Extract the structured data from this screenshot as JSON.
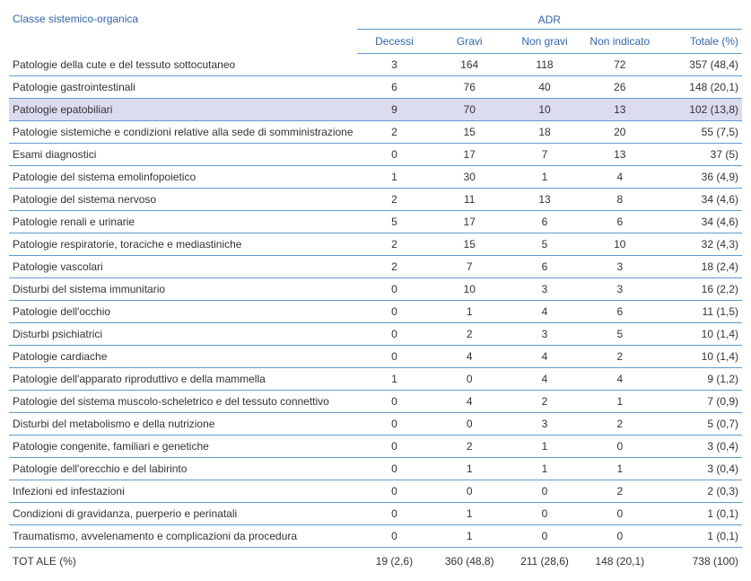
{
  "headers": {
    "class_label": "Classe sistemico-organica",
    "adr_label": "ADR",
    "columns": [
      "Decessi",
      "Gravi",
      "Non gravi",
      "Non indicato",
      "Totale (%)"
    ]
  },
  "rows": [
    {
      "label": "Patologie della cute e del tessuto sottocutaneo",
      "vals": [
        "3",
        "164",
        "118",
        "72"
      ],
      "total": "357 (48,4)",
      "highlight": false
    },
    {
      "label": "Patologie gastrointestinali",
      "vals": [
        "6",
        "76",
        "40",
        "26"
      ],
      "total": "148 (20,1)",
      "highlight": false
    },
    {
      "label": "Patologie epatobiliari",
      "vals": [
        "9",
        "70",
        "10",
        "13"
      ],
      "total": "102 (13,8)",
      "highlight": true
    },
    {
      "label": "Patologie sistemiche e condizioni relative alla sede di somministrazione",
      "vals": [
        "2",
        "15",
        "18",
        "20"
      ],
      "total": "55 (7,5)",
      "highlight": false
    },
    {
      "label": "Esami diagnostici",
      "vals": [
        "0",
        "17",
        "7",
        "13"
      ],
      "total": "37 (5)",
      "highlight": false
    },
    {
      "label": "Patologie del sistema emolinfopoietico",
      "vals": [
        "1",
        "30",
        "1",
        "4"
      ],
      "total": "36 (4,9)",
      "highlight": false
    },
    {
      "label": "Patologie del sistema nervoso",
      "vals": [
        "2",
        "11",
        "13",
        "8"
      ],
      "total": "34 (4,6)",
      "highlight": false
    },
    {
      "label": "Patologie renali e urinarie",
      "vals": [
        "5",
        "17",
        "6",
        "6"
      ],
      "total": "34 (4,6)",
      "highlight": false
    },
    {
      "label": "Patologie respiratorie, toraciche e mediastiniche",
      "vals": [
        "2",
        "15",
        "5",
        "10"
      ],
      "total": "32 (4,3)",
      "highlight": false
    },
    {
      "label": "Patologie vascolari",
      "vals": [
        "2",
        "7",
        "6",
        "3"
      ],
      "total": "18 (2,4)",
      "highlight": false
    },
    {
      "label": "Disturbi del sistema immunitario",
      "vals": [
        "0",
        "10",
        "3",
        "3"
      ],
      "total": "16 (2,2)",
      "highlight": false
    },
    {
      "label": "Patologie dell'occhio",
      "vals": [
        "0",
        "1",
        "4",
        "6"
      ],
      "total": "11 (1,5)",
      "highlight": false
    },
    {
      "label": "Disturbi psichiatrici",
      "vals": [
        "0",
        "2",
        "3",
        "5"
      ],
      "total": "10 (1,4)",
      "highlight": false
    },
    {
      "label": "Patologie cardiache",
      "vals": [
        "0",
        "4",
        "4",
        "2"
      ],
      "total": "10 (1,4)",
      "highlight": false
    },
    {
      "label": "Patologie dell'apparato riproduttivo e della mammella",
      "vals": [
        "1",
        "0",
        "4",
        "4"
      ],
      "total": "9 (1,2)",
      "highlight": false
    },
    {
      "label": "Patologie del sistema muscolo-scheletrico e del tessuto connettivo",
      "vals": [
        "0",
        "4",
        "2",
        "1"
      ],
      "total": "7 (0,9)",
      "highlight": false
    },
    {
      "label": "Disturbi del metabolismo e della nutrizione",
      "vals": [
        "0",
        "0",
        "3",
        "2"
      ],
      "total": "5 (0,7)",
      "highlight": false
    },
    {
      "label": "Patologie congenite, familiari e genetiche",
      "vals": [
        "0",
        "2",
        "1",
        "0"
      ],
      "total": "3 (0,4)",
      "highlight": false
    },
    {
      "label": "Patologie dell'orecchio e del labirinto",
      "vals": [
        "0",
        "1",
        "1",
        "1"
      ],
      "total": "3 (0,4)",
      "highlight": false
    },
    {
      "label": "Infezioni ed infestazioni",
      "vals": [
        "0",
        "0",
        "0",
        "2"
      ],
      "total": "2 (0,3)",
      "highlight": false
    },
    {
      "label": "Condizioni di gravidanza, puerperio e perinatali",
      "vals": [
        "0",
        "1",
        "0",
        "0"
      ],
      "total": "1 (0,1)",
      "highlight": false
    },
    {
      "label": "Traumatismo, avvelenamento e complicazioni da procedura",
      "vals": [
        "0",
        "1",
        "0",
        "0"
      ],
      "total": "1 (0,1)",
      "highlight": false
    }
  ],
  "footer": {
    "label": "TOT ALE (%)",
    "vals": [
      "19 (2,6)",
      "360 (48,8)",
      "211 (28,6)",
      "148 (20,1)"
    ],
    "total": "738 (100)"
  },
  "style": {
    "header_color": "#3366aa",
    "border_color": "#6699cc",
    "highlight_bg": "#dcdcf0",
    "font_size": 12
  }
}
